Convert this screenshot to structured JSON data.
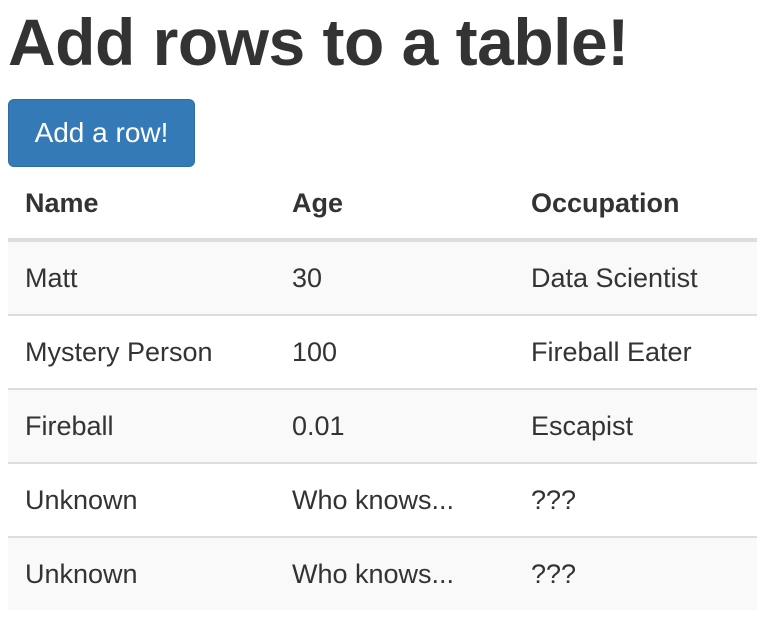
{
  "page": {
    "title": "Add rows to a table!"
  },
  "controls": {
    "add_row_label": "Add a row!"
  },
  "table": {
    "headers": {
      "name": "Name",
      "age": "Age",
      "occupation": "Occupation"
    },
    "rows": [
      {
        "name": "Matt",
        "age": "30",
        "occupation": "Data Scientist"
      },
      {
        "name": "Mystery Person",
        "age": "100",
        "occupation": "Fireball Eater"
      },
      {
        "name": "Fireball",
        "age": "0.01",
        "occupation": "Escapist"
      },
      {
        "name": "Unknown",
        "age": "Who knows...",
        "occupation": "???"
      },
      {
        "name": "Unknown",
        "age": "Who knows...",
        "occupation": "???"
      }
    ]
  },
  "colors": {
    "primary_button": "#337ab7",
    "stripe": "#f9f9f9",
    "border": "#dddddd",
    "text": "#333333"
  }
}
